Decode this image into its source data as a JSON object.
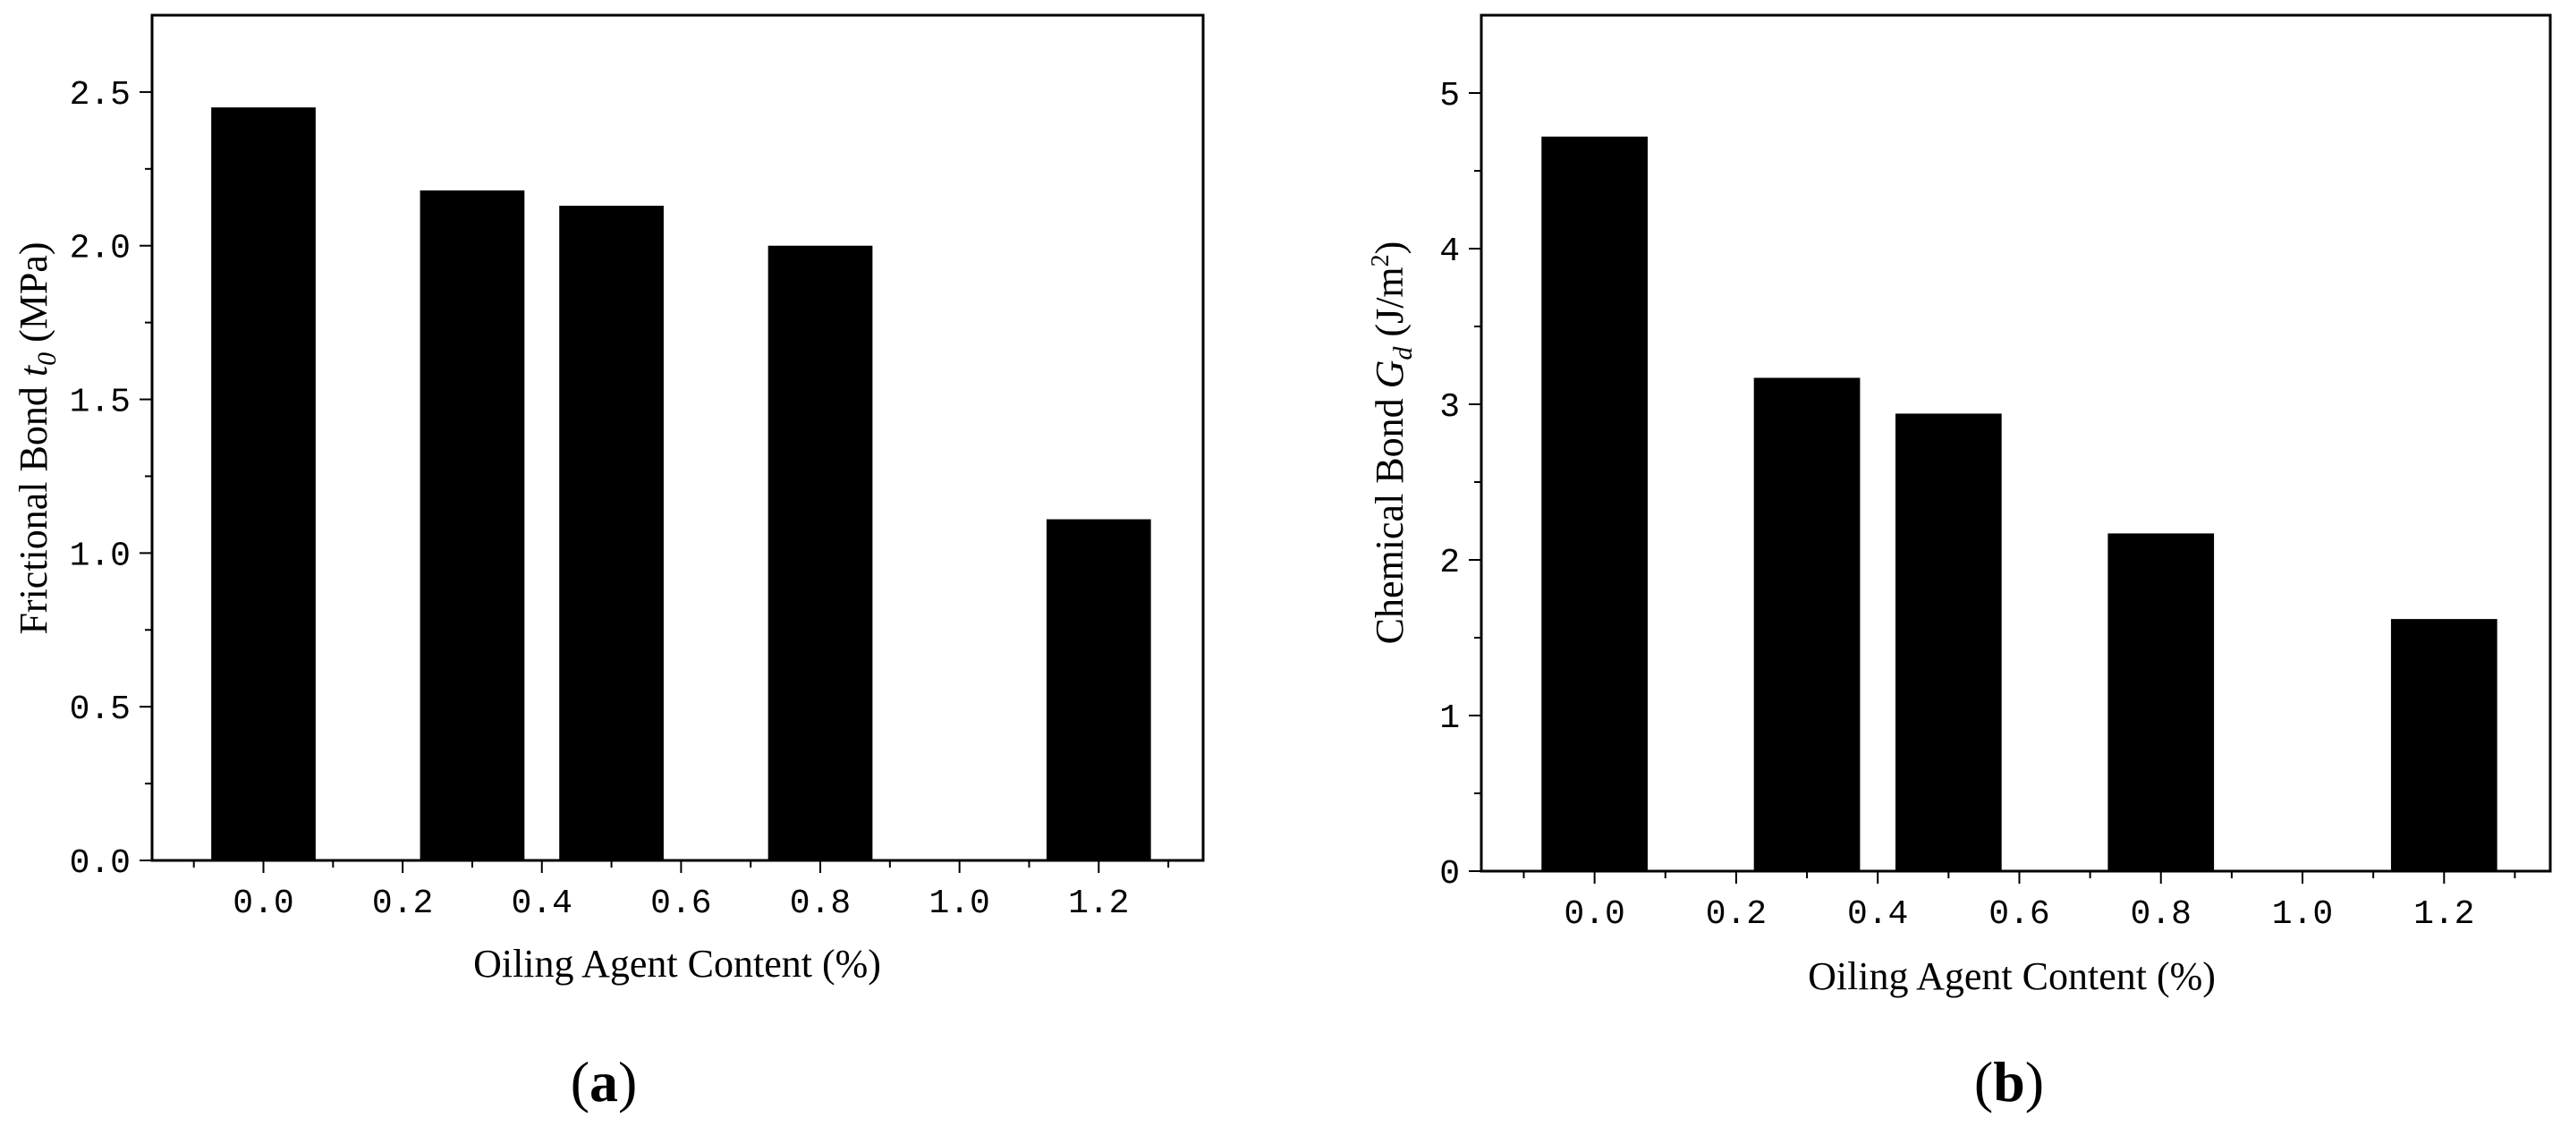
{
  "colors": {
    "bar": "#000000",
    "axis": "#000000",
    "background": "#ffffff"
  },
  "chart_data": [
    {
      "type": "bar",
      "panel_label": "a",
      "title": "",
      "xlabel": "Oiling Agent Content (%)",
      "ylabel_main": "Frictional Bond",
      "ylabel_symbol": "t",
      "ylabel_subscript": "0",
      "ylabel_unit": "(MPa)",
      "categories": [
        "0.0",
        "0.3",
        "0.5",
        "0.8",
        "1.2"
      ],
      "bar_centers": [
        0.0,
        0.3,
        0.5,
        0.8,
        1.2
      ],
      "values": [
        2.45,
        2.18,
        2.13,
        2.0,
        1.11
      ],
      "bar_width": 0.15,
      "xlim": [
        -0.16,
        1.35
      ],
      "ylim": [
        0,
        2.75
      ],
      "xticks": [
        0.0,
        0.2,
        0.4,
        0.6,
        0.8,
        1.0,
        1.2
      ],
      "xtick_labels": [
        "0.0",
        "0.2",
        "0.4",
        "0.6",
        "0.8",
        "1.0",
        "1.2"
      ],
      "yticks": [
        0.0,
        0.5,
        1.0,
        1.5,
        2.0,
        2.5
      ],
      "ytick_labels": [
        "0.0",
        "0.5",
        "1.0",
        "1.5",
        "2.0",
        "2.5"
      ],
      "grid": false
    },
    {
      "type": "bar",
      "panel_label": "b",
      "title": "",
      "xlabel": "Oiling Agent Content (%)",
      "ylabel_main": "Chemical Bond",
      "ylabel_symbol": "G",
      "ylabel_subscript": "d",
      "ylabel_unit_pre": "(J/m",
      "ylabel_unit_sup": "2",
      "ylabel_unit_post": ")",
      "categories": [
        "0.0",
        "0.3",
        "0.5",
        "0.8",
        "1.2"
      ],
      "bar_centers": [
        0.0,
        0.3,
        0.5,
        0.8,
        1.2
      ],
      "values": [
        4.72,
        3.17,
        2.94,
        2.17,
        1.62
      ],
      "bar_width": 0.15,
      "xlim": [
        -0.16,
        1.35
      ],
      "ylim": [
        0,
        5.5
      ],
      "xticks": [
        0.0,
        0.2,
        0.4,
        0.6,
        0.8,
        1.0,
        1.2
      ],
      "xtick_labels": [
        "0.0",
        "0.2",
        "0.4",
        "0.6",
        "0.8",
        "1.0",
        "1.2"
      ],
      "yticks": [
        0,
        1,
        2,
        3,
        4,
        5
      ],
      "ytick_labels": [
        "0",
        "1",
        "2",
        "3",
        "4",
        "5"
      ],
      "grid": false
    }
  ]
}
